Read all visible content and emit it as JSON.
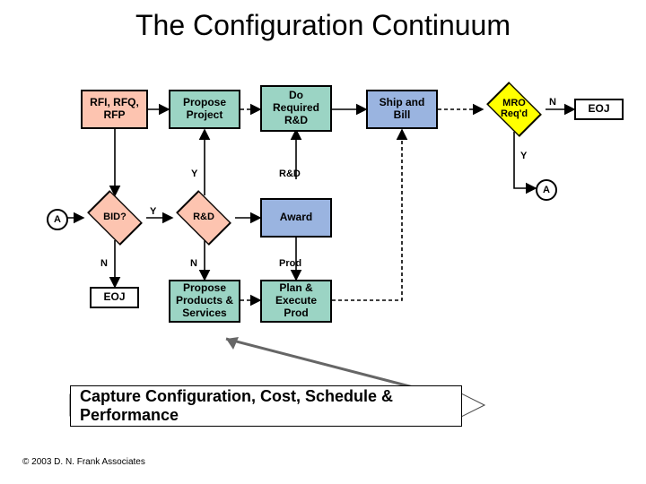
{
  "title": "The Configuration Continuum",
  "copyright": "© 2003 D. N. Frank Associates",
  "colors": {
    "salmon": "#fdc4b0",
    "teal": "#9bd4c4",
    "yellow": "#ffff00",
    "blue": "#9ab4e0",
    "white": "#ffffff",
    "black": "#000000"
  },
  "labels": {
    "Y": "Y",
    "N": "N",
    "RnD_small": "R&D",
    "Prod_small": "Prod"
  },
  "nodes": {
    "rfi": {
      "text": "RFI, RFQ,\nRFP"
    },
    "proposeProj": {
      "text": "Propose\nProject"
    },
    "doRnD": {
      "text": "Do\nRequired\nR&D"
    },
    "shipBill": {
      "text": "Ship and\nBill"
    },
    "mro": {
      "text": "MRO\nReq'd"
    },
    "eoj_right": {
      "text": "EOJ"
    },
    "bid": {
      "text": "BID?"
    },
    "rndDiamond": {
      "text": "R&D"
    },
    "award": {
      "text": "Award"
    },
    "eoj_left": {
      "text": "EOJ"
    },
    "proposePS": {
      "text": "Propose\nProducts &\nServices"
    },
    "planProd": {
      "text": "Plan &\nExecute\nProd"
    },
    "connA_left": {
      "text": "A"
    },
    "connA_right": {
      "text": "A"
    }
  },
  "caption": "Capture Configuration, Cost, Schedule & Performance"
}
